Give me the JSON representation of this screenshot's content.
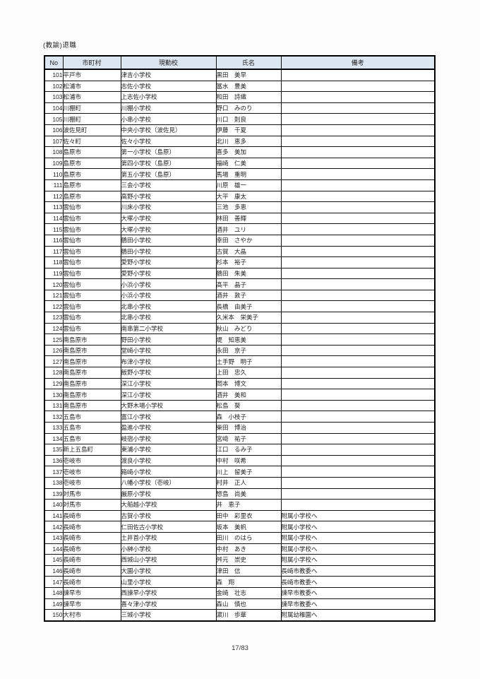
{
  "page": {
    "title": "(教諭)退職",
    "footer": "17/83"
  },
  "colors": {
    "header_bg": "#dce6f1",
    "border": "#000000",
    "page_bg": "#fdfdfd"
  },
  "table": {
    "headers": [
      "No",
      "市町村",
      "現勤校",
      "氏名",
      "備考"
    ],
    "rows": [
      [
        "101",
        "平戸市",
        "津吉小学校",
        "黒田　美早",
        ""
      ],
      [
        "102",
        "松浦市",
        "志佐小学校",
        "冨水　豊美",
        ""
      ],
      [
        "103",
        "松浦市",
        "上志佐小学校",
        "和田　詩織",
        ""
      ],
      [
        "104",
        "川棚町",
        "川棚小学校",
        "野口　みのり",
        ""
      ],
      [
        "105",
        "川棚町",
        "小串小学校",
        "川口　則良",
        ""
      ],
      [
        "106",
        "波佐見町",
        "中央小学校（波佐見）",
        "伊藤　千夏",
        ""
      ],
      [
        "107",
        "佐々町",
        "佐々小学校",
        "北川　恵多",
        ""
      ],
      [
        "108",
        "島原市",
        "第一小学校（島原）",
        "喜多　美加",
        ""
      ],
      [
        "109",
        "島原市",
        "第四小学校（島原）",
        "福崎　仁美",
        ""
      ],
      [
        "110",
        "島原市",
        "第五小学校（島原）",
        "馬場　重明",
        ""
      ],
      [
        "111",
        "島原市",
        "三会小学校",
        "川原　雄一",
        ""
      ],
      [
        "112",
        "島原市",
        "高野小学校",
        "大平　康太",
        ""
      ],
      [
        "113",
        "雲仙市",
        "川床小学校",
        "三池　多恵",
        ""
      ],
      [
        "114",
        "雲仙市",
        "大塚小学校",
        "林田　善輝",
        ""
      ],
      [
        "115",
        "雲仙市",
        "大塚小学校",
        "酒井　ユリ",
        ""
      ],
      [
        "116",
        "雲仙市",
        "鶴田小学校",
        "幸田　さやか",
        ""
      ],
      [
        "117",
        "雲仙市",
        "鶴田小学校",
        "古賀　大晶",
        ""
      ],
      [
        "118",
        "雲仙市",
        "愛野小学校",
        "杉本　裕子",
        ""
      ],
      [
        "119",
        "雲仙市",
        "愛野小学校",
        "鶴田　朱美",
        ""
      ],
      [
        "120",
        "雲仙市",
        "小浜小学校",
        "髙平　晶子",
        ""
      ],
      [
        "121",
        "雲仙市",
        "小浜小学校",
        "酒井　敦子",
        ""
      ],
      [
        "122",
        "雲仙市",
        "北串小学校",
        "長橋　由美子",
        ""
      ],
      [
        "123",
        "雲仙市",
        "北串小学校",
        "久米本　栄美子",
        ""
      ],
      [
        "124",
        "雲仙市",
        "南串第二小学校",
        "秋山　みどり",
        ""
      ],
      [
        "125",
        "南島原市",
        "野田小学校",
        "堤　知恵美",
        ""
      ],
      [
        "126",
        "南島原市",
        "堂崎小学校",
        "永田　京子",
        ""
      ],
      [
        "127",
        "南島原市",
        "布津小学校",
        "土手野　明子",
        ""
      ],
      [
        "128",
        "南島原市",
        "飯野小学校",
        "上田　忠久",
        ""
      ],
      [
        "129",
        "南島原市",
        "深江小学校",
        "岡本　博文",
        ""
      ],
      [
        "130",
        "南島原市",
        "深江小学校",
        "酒井　美和",
        ""
      ],
      [
        "131",
        "南島原市",
        "大野木場小学校",
        "松島　葵",
        ""
      ],
      [
        "132",
        "五島市",
        "富江小学校",
        "森　小枝子",
        ""
      ],
      [
        "133",
        "五島市",
        "盈進小学校",
        "柴田　博治",
        ""
      ],
      [
        "134",
        "五島市",
        "岐宿小学校",
        "宮﨑　祐子",
        ""
      ],
      [
        "135",
        "新上五島町",
        "東浦小学校",
        "江口　るみ子",
        ""
      ],
      [
        "136",
        "壱岐市",
        "渡良小学校",
        "中村　咲希",
        ""
      ],
      [
        "137",
        "壱岐市",
        "箱崎小学校",
        "川上　留美子",
        ""
      ],
      [
        "138",
        "壱岐市",
        "八幡小学校（壱岐）",
        "村井　正人",
        ""
      ],
      [
        "139",
        "対馬市",
        "厳原小学校",
        "惣島　尚美",
        ""
      ],
      [
        "140",
        "対馬市",
        "大船越小学校",
        "井　恵子",
        ""
      ],
      [
        "141",
        "長崎市",
        "古賀小学校",
        "田中　彩里衣",
        "附属小学校へ"
      ],
      [
        "142",
        "長崎市",
        "仁田佐古小学校",
        "坂本　美帆",
        "附属小学校へ"
      ],
      [
        "143",
        "長崎市",
        "土井首小学校",
        "田川　のはら",
        "附属小学校へ"
      ],
      [
        "144",
        "長崎市",
        "小榊小学校",
        "中村　あき",
        "附属小学校へ"
      ],
      [
        "145",
        "長崎市",
        "西城山小学校",
        "舛元　崇史",
        "附属小学校へ"
      ],
      [
        "146",
        "長崎市",
        "大園小学校",
        "津田　信",
        "長崎市教委へ"
      ],
      [
        "147",
        "長崎市",
        "山里小学校",
        "森　翔",
        "長崎市教委へ"
      ],
      [
        "148",
        "諫早市",
        "西諫早小学校",
        "金崎　壮志",
        "諫早市教委へ"
      ],
      [
        "149",
        "諫早市",
        "喜々津小学校",
        "森山　慎也",
        "諫早市教委へ"
      ],
      [
        "150",
        "大村市",
        "三城小学校",
        "濵川　歩華",
        "附属幼稚園へ"
      ]
    ]
  }
}
